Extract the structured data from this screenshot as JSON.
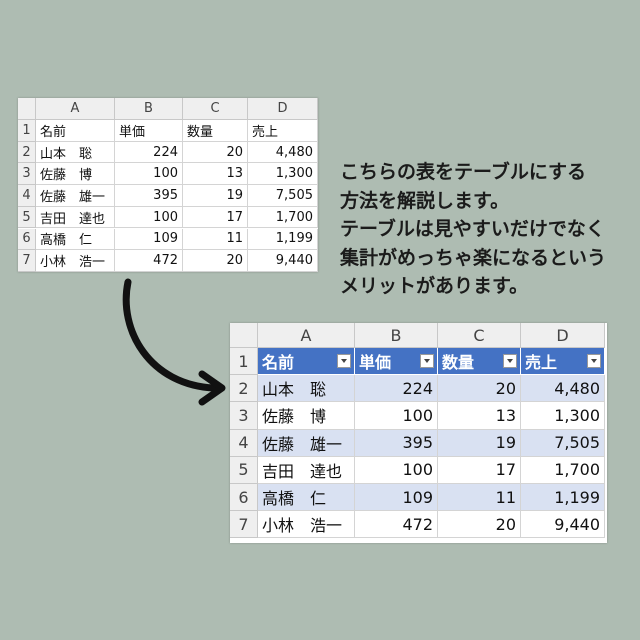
{
  "top_table": {
    "columns": [
      "A",
      "B",
      "C",
      "D"
    ],
    "row_numbers": [
      "1",
      "2",
      "3",
      "4",
      "5",
      "6",
      "7"
    ],
    "rows": [
      [
        "名前",
        "単価",
        "数量",
        "売上"
      ],
      [
        "山本　聡",
        "224",
        "20",
        "4,480"
      ],
      [
        "佐藤　博",
        "100",
        "13",
        "1,300"
      ],
      [
        "佐藤　雄一",
        "395",
        "19",
        "7,505"
      ],
      [
        "吉田　達也",
        "100",
        "17",
        "1,700"
      ],
      [
        "高橋　仁",
        "109",
        "11",
        "1,199"
      ],
      [
        "小林　浩一",
        "472",
        "20",
        "9,440"
      ]
    ]
  },
  "description": {
    "lines": [
      "こちらの表をテーブルにする",
      "方法を解説します。",
      "テーブルは見やすいだけでなく",
      "集計がめっちゃ楽になるという",
      "メリットがあります。"
    ]
  },
  "bottom_table": {
    "columns": [
      "A",
      "B",
      "C",
      "D"
    ],
    "row_numbers": [
      "1",
      "2",
      "3",
      "4",
      "5",
      "6",
      "7"
    ],
    "rows": [
      [
        "名前",
        "単価",
        "数量",
        "売上"
      ],
      [
        "山本　聡",
        "224",
        "20",
        "4,480"
      ],
      [
        "佐藤　博",
        "100",
        "13",
        "1,300"
      ],
      [
        "佐藤　雄一",
        "395",
        "19",
        "7,505"
      ],
      [
        "吉田　達也",
        "100",
        "17",
        "1,700"
      ],
      [
        "高橋　仁",
        "109",
        "11",
        "1,199"
      ],
      [
        "小林　浩一",
        "472",
        "20",
        "9,440"
      ]
    ]
  }
}
